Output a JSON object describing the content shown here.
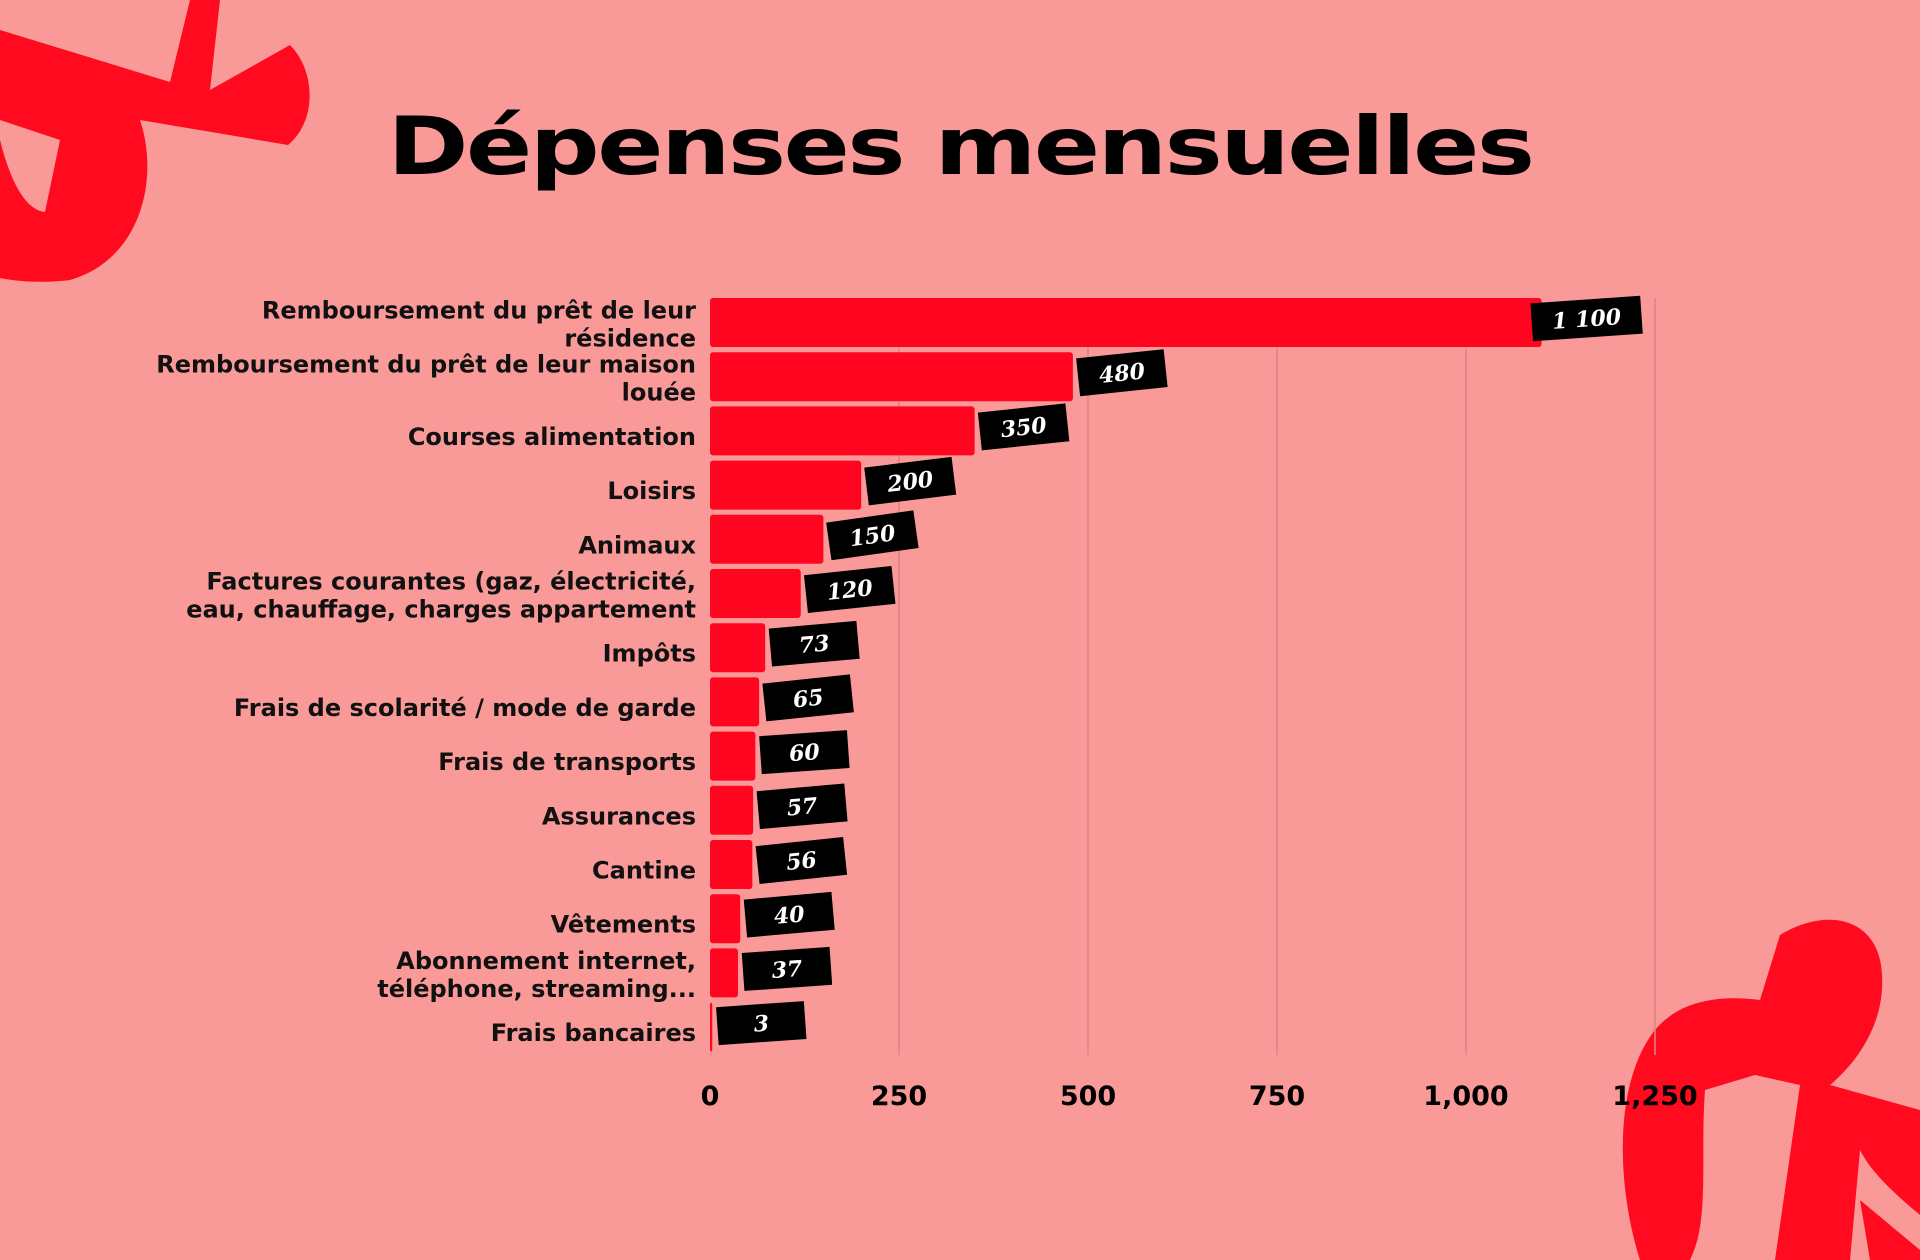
{
  "colors": {
    "background": "#f99a98",
    "bar": "#ff051f",
    "tag": "#000000",
    "grid": "#dc8584",
    "decor": "#ff0a1e"
  },
  "chart_data": {
    "type": "bar",
    "orientation": "horizontal",
    "title": "Dépenses mensuelles",
    "categories": [
      [
        "Remboursement du prêt de leur",
        "résidence"
      ],
      [
        "Remboursement du prêt de leur maison",
        "louée"
      ],
      [
        "Courses alimentation"
      ],
      [
        "Loisirs"
      ],
      [
        "Animaux"
      ],
      [
        "Factures courantes (gaz, électricité,",
        "eau, chauffage, charges appartement"
      ],
      [
        "Impôts"
      ],
      [
        "Frais de scolarité / mode de garde"
      ],
      [
        "Frais de transports"
      ],
      [
        "Assurances"
      ],
      [
        "Cantine"
      ],
      [
        "Vêtements"
      ],
      [
        "Abonnement internet,",
        "téléphone, streaming..."
      ],
      [
        "Frais bancaires"
      ]
    ],
    "values": [
      1100,
      480,
      350,
      200,
      150,
      120,
      73,
      65,
      60,
      57,
      56,
      40,
      37,
      3
    ],
    "value_labels": [
      "1 100",
      "480",
      "350",
      "200",
      "150",
      "120",
      "73",
      "65",
      "60",
      "57",
      "56",
      "40",
      "37",
      "3"
    ],
    "xlim": [
      0,
      1250
    ],
    "xticks": [
      0,
      250,
      500,
      750,
      1000,
      1250
    ],
    "xtick_labels": [
      "0",
      "250",
      "500",
      "750",
      "1,000",
      "1,250"
    ],
    "grid": "vertical",
    "legend": "none"
  }
}
